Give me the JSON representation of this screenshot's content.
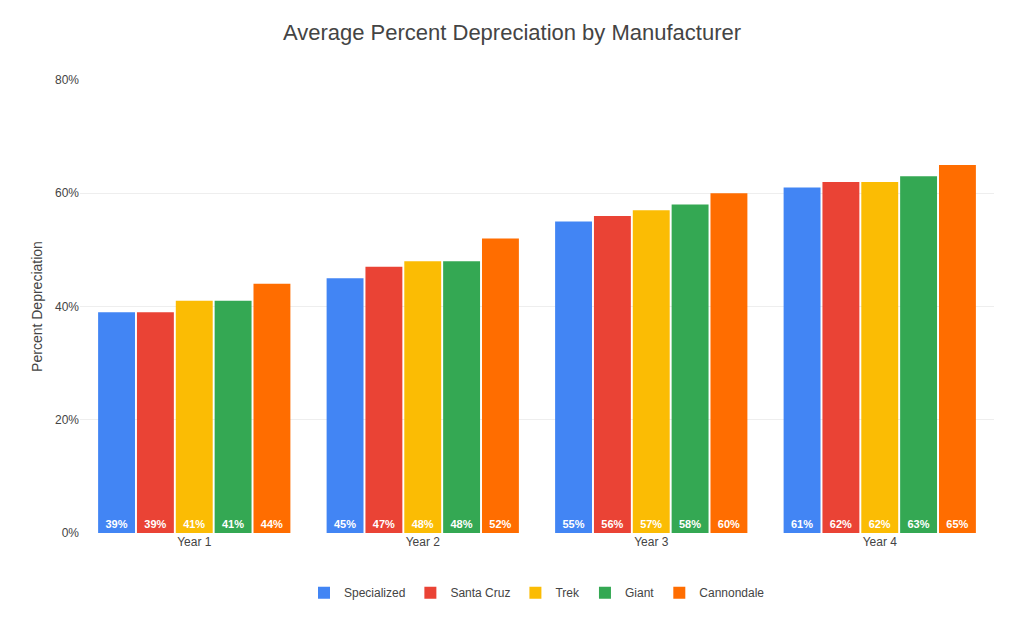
{
  "chart_data": {
    "type": "bar",
    "title": "Average Percent Depreciation by Manufacturer",
    "ylabel": "Percent Depreciation",
    "categories": [
      "Year 1",
      "Year 2",
      "Year 3",
      "Year 4"
    ],
    "series": [
      {
        "name": "Specialized",
        "color": "#4285F4",
        "values": [
          39,
          45,
          55,
          61
        ],
        "value_labels": [
          "39%",
          "45%",
          "55%",
          "61%"
        ]
      },
      {
        "name": "Santa Cruz",
        "color": "#EA4335",
        "values": [
          39,
          47,
          56,
          62
        ],
        "value_labels": [
          "39%",
          "47%",
          "56%",
          "62%"
        ]
      },
      {
        "name": "Trek",
        "color": "#FBBC04",
        "values": [
          41,
          48,
          57,
          62
        ],
        "value_labels": [
          "41%",
          "48%",
          "57%",
          "62%"
        ]
      },
      {
        "name": "Giant",
        "color": "#34A853",
        "values": [
          41,
          48,
          58,
          63
        ],
        "value_labels": [
          "41%",
          "48%",
          "58%",
          "63%"
        ]
      },
      {
        "name": "Cannondale",
        "color": "#FF6D00",
        "values": [
          44,
          52,
          60,
          65
        ],
        "value_labels": [
          "44%",
          "52%",
          "60%",
          "65%"
        ]
      }
    ],
    "ylim": [
      0,
      80
    ],
    "yticks": [
      {
        "value": 0,
        "label": "0%"
      },
      {
        "value": 20,
        "label": "20%"
      },
      {
        "value": 40,
        "label": "40%"
      },
      {
        "value": 60,
        "label": "60%"
      },
      {
        "value": 80,
        "label": "80%"
      }
    ],
    "grid": true,
    "legend": "bottom",
    "data_labels": true
  }
}
